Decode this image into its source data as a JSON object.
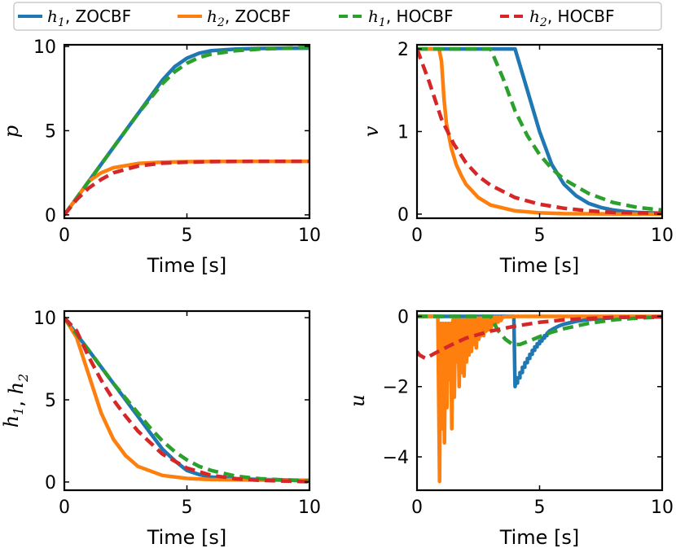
{
  "legend": {
    "entries": [
      {
        "var": "h",
        "sub": "1",
        "method": "ZOCBF",
        "color": "#1f77b4",
        "style": "solid"
      },
      {
        "var": "h",
        "sub": "2",
        "method": "ZOCBF",
        "color": "#ff7f0e",
        "style": "solid"
      },
      {
        "var": "h",
        "sub": "1",
        "method": "HOCBF",
        "color": "#2ca02c",
        "style": "dashed"
      },
      {
        "var": "h",
        "sub": "2",
        "method": "HOCBF",
        "color": "#d62728",
        "style": "dashed"
      }
    ],
    "sep": ", "
  },
  "chart_data": [
    {
      "type": "line",
      "ylabel": {
        "text": "p"
      },
      "xlabel": "Time [s]",
      "xlim": [
        0,
        10
      ],
      "ylim": [
        -0.2,
        10.1
      ],
      "xticks": [
        0,
        5,
        10
      ],
      "yticks": [
        0,
        5,
        10
      ],
      "grid": false,
      "series": [
        {
          "name": "h1, ZOCBF",
          "color": "#1f77b4",
          "dash": false,
          "x": [
            0,
            1,
            2,
            3,
            4,
            4.5,
            5,
            5.5,
            6,
            7,
            8,
            10
          ],
          "y": [
            0,
            2,
            4,
            6,
            8,
            8.8,
            9.3,
            9.6,
            9.75,
            9.85,
            9.88,
            9.9
          ]
        },
        {
          "name": "h2, ZOCBF",
          "color": "#ff7f0e",
          "dash": false,
          "x": [
            0,
            0.5,
            1,
            1.5,
            2,
            3,
            4,
            5,
            6,
            8,
            10
          ],
          "y": [
            0,
            1,
            2,
            2.5,
            2.8,
            3.05,
            3.13,
            3.16,
            3.17,
            3.18,
            3.18
          ]
        },
        {
          "name": "h1, HOCBF",
          "color": "#2ca02c",
          "dash": true,
          "x": [
            0,
            1,
            2,
            3,
            4,
            4.5,
            5,
            5.5,
            6,
            7,
            8,
            10
          ],
          "y": [
            0,
            2,
            4,
            6,
            7.8,
            8.5,
            9.0,
            9.35,
            9.55,
            9.75,
            9.85,
            9.95
          ]
        },
        {
          "name": "h2, HOCBF",
          "color": "#d62728",
          "dash": true,
          "x": [
            0,
            0.5,
            1,
            1.5,
            2,
            3,
            4,
            5,
            6,
            8,
            10
          ],
          "y": [
            0,
            0.9,
            1.6,
            2.1,
            2.5,
            2.9,
            3.07,
            3.13,
            3.16,
            3.18,
            3.18
          ]
        }
      ]
    },
    {
      "type": "line",
      "ylabel": {
        "text": "v"
      },
      "xlabel": "Time [s]",
      "xlim": [
        0,
        10
      ],
      "ylim": [
        -0.05,
        2.05
      ],
      "xticks": [
        0,
        5,
        10
      ],
      "yticks": [
        0,
        1,
        2
      ],
      "grid": false,
      "series": [
        {
          "name": "h1, ZOCBF",
          "color": "#1f77b4",
          "dash": false,
          "x": [
            0,
            4,
            4.5,
            5,
            5.5,
            6,
            6.5,
            7,
            7.5,
            8,
            8.5,
            9,
            10
          ],
          "y": [
            2,
            2,
            1.5,
            1.0,
            0.6,
            0.36,
            0.22,
            0.13,
            0.08,
            0.05,
            0.03,
            0.02,
            0.01
          ]
        },
        {
          "name": "h2, ZOCBF",
          "color": "#ff7f0e",
          "dash": false,
          "x": [
            0,
            0.9,
            1.0,
            1.1,
            1.2,
            1.4,
            1.6,
            1.8,
            2,
            2.5,
            3,
            4,
            5,
            6,
            10
          ],
          "y": [
            2,
            2,
            1.85,
            1.4,
            1.1,
            0.8,
            0.6,
            0.47,
            0.36,
            0.2,
            0.11,
            0.04,
            0.015,
            0.005,
            0
          ]
        },
        {
          "name": "h1, HOCBF",
          "color": "#2ca02c",
          "dash": true,
          "x": [
            0,
            3,
            3.5,
            4,
            4.5,
            5,
            5.5,
            6,
            7,
            8,
            9,
            10
          ],
          "y": [
            2,
            2,
            1.65,
            1.25,
            0.95,
            0.72,
            0.55,
            0.42,
            0.25,
            0.14,
            0.08,
            0.05
          ]
        },
        {
          "name": "h2, HOCBF",
          "color": "#d62728",
          "dash": true,
          "x": [
            0,
            0.5,
            1,
            1.5,
            2,
            2.5,
            3,
            4,
            5,
            6,
            7,
            8,
            10
          ],
          "y": [
            2,
            1.6,
            1.15,
            0.85,
            0.62,
            0.46,
            0.35,
            0.2,
            0.12,
            0.07,
            0.04,
            0.02,
            0.01
          ]
        }
      ]
    },
    {
      "type": "line",
      "ylabel": {
        "text": "h1, h2"
      },
      "xlabel": "Time [s]",
      "xlim": [
        0,
        10
      ],
      "ylim": [
        -0.5,
        10.4
      ],
      "xticks": [
        0,
        5,
        10
      ],
      "yticks": [
        0,
        5,
        10
      ],
      "grid": false,
      "series": [
        {
          "name": "h1, ZOCBF",
          "color": "#1f77b4",
          "dash": false,
          "x": [
            0,
            0.5,
            1,
            2,
            3,
            3.5,
            4,
            4.5,
            5,
            5.5,
            6,
            7,
            8,
            10
          ],
          "y": [
            10,
            9,
            8,
            6,
            4,
            3,
            2,
            1.3,
            0.7,
            0.45,
            0.3,
            0.2,
            0.15,
            0.1
          ]
        },
        {
          "name": "h2, ZOCBF",
          "color": "#ff7f0e",
          "dash": false,
          "x": [
            0,
            0.5,
            1,
            1.5,
            2,
            2.5,
            3,
            4,
            5,
            6,
            8,
            10
          ],
          "y": [
            10,
            8.8,
            6.5,
            4.2,
            2.6,
            1.6,
            0.95,
            0.4,
            0.22,
            0.15,
            0.12,
            0.1
          ]
        },
        {
          "name": "h1, HOCBF",
          "color": "#2ca02c",
          "dash": true,
          "x": [
            0,
            1,
            2,
            3,
            3.5,
            4,
            4.5,
            5,
            5.5,
            6,
            7,
            8,
            10
          ],
          "y": [
            10,
            8,
            6,
            4.2,
            3.3,
            2.5,
            1.85,
            1.35,
            0.95,
            0.7,
            0.35,
            0.2,
            0.05
          ]
        },
        {
          "name": "h2, HOCBF",
          "color": "#d62728",
          "dash": true,
          "x": [
            0,
            0.5,
            1,
            1.5,
            2,
            2.5,
            3,
            4,
            5,
            6,
            7,
            8,
            10
          ],
          "y": [
            10,
            9.2,
            7.6,
            6.2,
            5,
            4,
            3.1,
            1.7,
            0.85,
            0.4,
            0.2,
            0.1,
            0.02
          ]
        }
      ]
    },
    {
      "type": "line",
      "ylabel": {
        "text": "u"
      },
      "xlabel": "Time [s]",
      "xlim": [
        0,
        10
      ],
      "ylim": [
        -4.95,
        0.15
      ],
      "xticks": [
        0,
        5,
        10
      ],
      "yticks": [
        0,
        -2,
        -4
      ],
      "ytick_labels": [
        "0",
        "−2",
        "−4"
      ],
      "grid": false,
      "series": [
        {
          "name": "h1, ZOCBF",
          "color": "#1f77b4",
          "dash": false,
          "x": [
            0,
            3.95,
            4.0,
            4.02,
            4.1,
            4.1,
            4.2,
            4.2,
            4.3,
            4.3,
            4.4,
            4.4,
            4.5,
            4.5,
            4.6,
            4.6,
            4.7,
            4.7,
            4.8,
            4.8,
            4.9,
            4.9,
            5.0,
            5.0,
            5.1,
            5.1,
            5.2,
            5.2,
            5.3,
            5.3,
            5.4,
            5.6,
            5.8,
            6,
            6.5,
            7,
            8,
            9,
            10
          ],
          "y": [
            0,
            0,
            -2,
            -1.9,
            -1.9,
            -1.75,
            -1.75,
            -1.6,
            -1.6,
            -1.45,
            -1.45,
            -1.32,
            -1.32,
            -1.2,
            -1.2,
            -1.08,
            -1.08,
            -0.97,
            -0.97,
            -0.87,
            -0.87,
            -0.78,
            -0.78,
            -0.7,
            -0.7,
            -0.62,
            -0.62,
            -0.55,
            -0.55,
            -0.49,
            -0.42,
            -0.34,
            -0.27,
            -0.22,
            -0.14,
            -0.09,
            -0.04,
            -0.02,
            -0.01
          ]
        },
        {
          "name": "h2, ZOCBF",
          "color": "#ff7f0e",
          "dash": false,
          "x": [
            0,
            0.85,
            0.92,
            0.97,
            1.02,
            1.07,
            1.12,
            1.17,
            1.22,
            1.27,
            1.32,
            1.37,
            1.42,
            1.47,
            1.52,
            1.57,
            1.62,
            1.67,
            1.72,
            1.77,
            1.82,
            1.87,
            1.92,
            1.97,
            2.02,
            2.07,
            2.12,
            2.17,
            2.22,
            2.27,
            2.32,
            2.37,
            2.42,
            2.47,
            2.52,
            2.57,
            2.62,
            2.67,
            2.72,
            2.77,
            2.82,
            2.87,
            2.92,
            2.97,
            3.02,
            3.07,
            3.12,
            3.17,
            3.22,
            3.27,
            3.32,
            3.37,
            3.42,
            3.5,
            4,
            10
          ],
          "y": [
            0,
            0,
            -4.7,
            -0.2,
            -3.2,
            -0.2,
            -3.6,
            -0.2,
            -2.6,
            -0.2,
            -1.8,
            -0.2,
            -3.2,
            -0.1,
            -2.3,
            -0.1,
            -1.3,
            -0.1,
            -2.0,
            -0.1,
            -1.6,
            -0.1,
            -1.7,
            -0.1,
            -1.3,
            -0.1,
            -1.1,
            -0.05,
            -1.0,
            -0.05,
            -0.8,
            -0.05,
            -0.9,
            -0.05,
            -0.65,
            -0.05,
            -0.55,
            -0.05,
            -0.55,
            -0.03,
            -0.42,
            -0.03,
            -0.38,
            -0.03,
            -0.32,
            -0.03,
            -0.25,
            -0.02,
            -0.2,
            -0.02,
            -0.16,
            -0.02,
            -0.12,
            -0.02,
            0,
            0
          ]
        },
        {
          "name": "h1, HOCBF",
          "color": "#2ca02c",
          "dash": true,
          "x": [
            0,
            3.0,
            3.3,
            3.6,
            3.9,
            4.2,
            4.5,
            5,
            5.5,
            6,
            7,
            8,
            9,
            10
          ],
          "y": [
            0,
            0,
            -0.4,
            -0.65,
            -0.8,
            -0.8,
            -0.72,
            -0.58,
            -0.45,
            -0.35,
            -0.2,
            -0.1,
            -0.05,
            -0.02
          ]
        },
        {
          "name": "h2, HOCBF",
          "color": "#d62728",
          "dash": true,
          "x": [
            0,
            0.1,
            0.35,
            0.6,
            1,
            1.5,
            2,
            3,
            4,
            5,
            6,
            7,
            8,
            10
          ],
          "y": [
            -1.0,
            -1.1,
            -1.2,
            -1.1,
            -0.95,
            -0.78,
            -0.62,
            -0.42,
            -0.28,
            -0.17,
            -0.1,
            -0.06,
            -0.03,
            -0.01
          ]
        }
      ]
    }
  ]
}
